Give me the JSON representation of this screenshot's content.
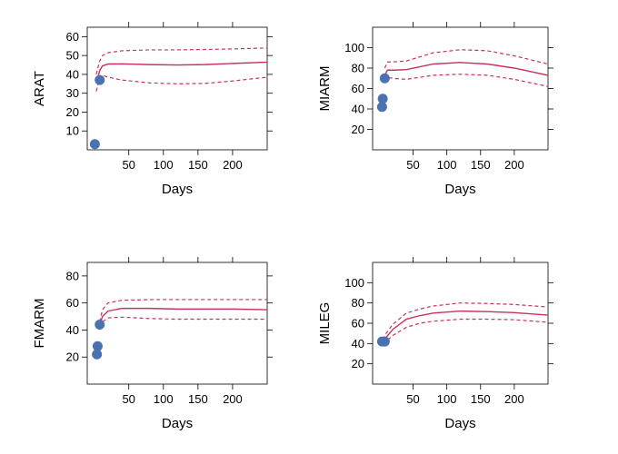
{
  "chart_data": [
    {
      "type": "line",
      "xlabel": "Days",
      "ylabel": "ARAT",
      "xlim": [
        -10,
        250
      ],
      "ylim": [
        0,
        65
      ],
      "xticks": [
        50,
        100,
        150,
        200
      ],
      "yticks": [
        10,
        20,
        30,
        40,
        50,
        60
      ],
      "series": [
        {
          "role": "fit",
          "x": [
            3,
            5,
            8,
            12,
            20,
            40,
            80,
            120,
            160,
            200,
            250
          ],
          "y": [
            36,
            38,
            42,
            44.5,
            45.5,
            45.6,
            45.2,
            45.0,
            45.2,
            45.8,
            46.5
          ]
        },
        {
          "role": "upper",
          "x": [
            3,
            5,
            8,
            12,
            20,
            40,
            80,
            120,
            160,
            200,
            250
          ],
          "y": [
            40,
            43,
            47,
            50,
            51.5,
            52.5,
            53,
            53,
            53.2,
            53.5,
            54
          ]
        },
        {
          "role": "lower",
          "x": [
            3,
            5,
            8,
            12,
            20,
            40,
            80,
            120,
            160,
            200,
            250
          ],
          "y": [
            31,
            34,
            38,
            39.5,
            38.5,
            37,
            35.5,
            35,
            35.2,
            36.5,
            38.5
          ]
        },
        {
          "role": "observed",
          "type": "scatter",
          "x": [
            1,
            8
          ],
          "y": [
            3,
            37
          ]
        }
      ]
    },
    {
      "type": "line",
      "xlabel": "Days",
      "ylabel": "MIARM",
      "xlim": [
        -10,
        250
      ],
      "ylim": [
        0,
        120
      ],
      "xticks": [
        50,
        100,
        150,
        200
      ],
      "yticks": [
        20,
        40,
        60,
        80,
        100
      ],
      "series": [
        {
          "role": "fit",
          "x": [
            8,
            12,
            20,
            40,
            80,
            120,
            160,
            200,
            250
          ],
          "y": [
            73,
            78,
            78,
            78.5,
            84,
            85.5,
            84,
            80,
            73
          ]
        },
        {
          "role": "upper",
          "x": [
            8,
            12,
            20,
            40,
            80,
            120,
            160,
            200,
            250
          ],
          "y": [
            80,
            86,
            86,
            87,
            95,
            98,
            97,
            92,
            84
          ]
        },
        {
          "role": "lower",
          "x": [
            8,
            12,
            20,
            40,
            80,
            120,
            160,
            200,
            250
          ],
          "y": [
            67,
            71,
            70,
            69,
            73,
            74,
            73,
            69,
            62
          ]
        },
        {
          "role": "observed",
          "type": "scatter",
          "x": [
            4,
            5,
            8
          ],
          "y": [
            42,
            50,
            70
          ]
        }
      ]
    },
    {
      "type": "line",
      "xlabel": "Days",
      "ylabel": "FMARM",
      "xlim": [
        -10,
        250
      ],
      "ylim": [
        0,
        90
      ],
      "xticks": [
        50,
        100,
        150,
        200
      ],
      "yticks": [
        20,
        40,
        60,
        80
      ],
      "series": [
        {
          "role": "fit",
          "x": [
            8,
            12,
            20,
            40,
            80,
            120,
            160,
            200,
            250
          ],
          "y": [
            44,
            50,
            54,
            56,
            56,
            55.5,
            55.5,
            55.5,
            55
          ]
        },
        {
          "role": "upper",
          "x": [
            8,
            12,
            20,
            40,
            80,
            120,
            160,
            200,
            250
          ],
          "y": [
            46,
            55,
            60,
            62,
            62.5,
            62.5,
            62.5,
            62.5,
            62.5
          ]
        },
        {
          "role": "lower",
          "x": [
            8,
            12,
            20,
            40,
            80,
            120,
            160,
            200,
            250
          ],
          "y": [
            42,
            46,
            49,
            49.5,
            48.5,
            48,
            48,
            48,
            48
          ]
        },
        {
          "role": "observed",
          "type": "scatter",
          "x": [
            4,
            5,
            8
          ],
          "y": [
            22,
            28,
            44
          ]
        }
      ]
    },
    {
      "type": "line",
      "xlabel": "Days",
      "ylabel": "MILEG",
      "xlim": [
        -10,
        250
      ],
      "ylim": [
        0,
        120
      ],
      "xticks": [
        50,
        100,
        150,
        200
      ],
      "yticks": [
        20,
        40,
        60,
        80,
        100
      ],
      "series": [
        {
          "role": "fit",
          "x": [
            5,
            10,
            20,
            40,
            60,
            80,
            120,
            160,
            200,
            250
          ],
          "y": [
            42,
            46,
            54,
            64,
            67.5,
            70,
            72,
            71.5,
            70.5,
            68
          ]
        },
        {
          "role": "upper",
          "x": [
            5,
            10,
            20,
            40,
            60,
            80,
            120,
            160,
            200,
            250
          ],
          "y": [
            44,
            50,
            59,
            70,
            74,
            77,
            80,
            79.5,
            78.5,
            76
          ]
        },
        {
          "role": "lower",
          "x": [
            5,
            10,
            20,
            40,
            60,
            80,
            120,
            160,
            200,
            250
          ],
          "y": [
            40,
            42,
            48,
            56,
            60,
            62,
            64,
            64,
            63.5,
            61
          ]
        },
        {
          "role": "observed",
          "type": "scatter",
          "x": [
            4,
            8
          ],
          "y": [
            42,
            42
          ]
        }
      ]
    }
  ]
}
